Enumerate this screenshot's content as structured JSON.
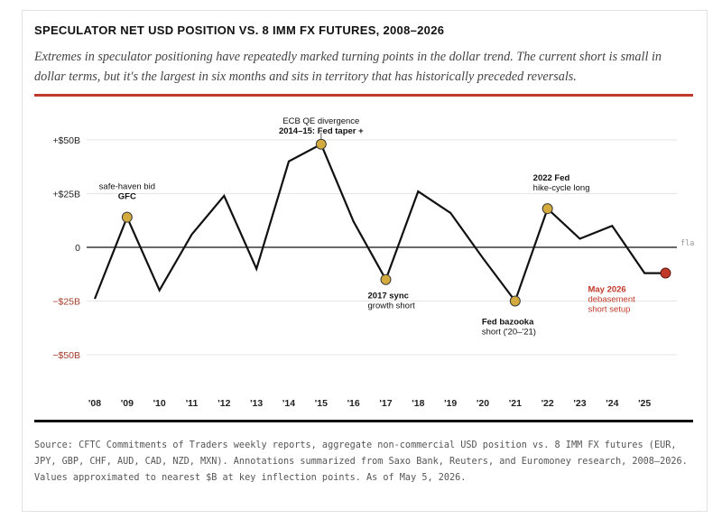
{
  "header": {
    "title": "SPECULATOR NET USD POSITION VS. 8 IMM FX FUTURES, 2008–2026",
    "subtitle": "Extremes in speculator positioning have repeatedly marked turning points in the dollar trend. The current short is small in dollar terms, but it's the largest in six months and sits in territory that has historically preceded reversals."
  },
  "source": "Source: CFTC Commitments of Traders weekly reports, aggregate non-commercial USD position vs. 8 IMM FX futures (EUR, JPY, GBP, CHF, AUD, CAD, NZD, MXN). Annotations summarized from Saxo Bank, Reuters, and Euromoney research, 2008–2026. Values approximated to nearest $B at key inflection points. As of May 5, 2026.",
  "colors": {
    "accent": "#c0392b",
    "line": "#111111",
    "marker": "#d4aa3c",
    "current_marker": "#c0392b",
    "negative_tick": "#a33a2a"
  },
  "chart_data": {
    "type": "line",
    "title": "",
    "xlabel": "",
    "ylabel": "",
    "ylim": [
      -50,
      50
    ],
    "yticks": [
      {
        "value": 50,
        "label": "+$50B",
        "negative": false
      },
      {
        "value": 25,
        "label": "+$25B",
        "negative": false
      },
      {
        "value": 0,
        "label": "0",
        "negative": false
      },
      {
        "value": -25,
        "label": "−$25B",
        "negative": true
      },
      {
        "value": -50,
        "label": "−$50B",
        "negative": true
      }
    ],
    "xlim": [
      2008,
      2026
    ],
    "xticks": [
      {
        "value": 2008,
        "label": "'08"
      },
      {
        "value": 2009,
        "label": "'09"
      },
      {
        "value": 2010,
        "label": "'10"
      },
      {
        "value": 2011,
        "label": "'11"
      },
      {
        "value": 2012,
        "label": "'12"
      },
      {
        "value": 2013,
        "label": "'13"
      },
      {
        "value": 2014,
        "label": "'14"
      },
      {
        "value": 2015,
        "label": "'15"
      },
      {
        "value": 2016,
        "label": "'16"
      },
      {
        "value": 2017,
        "label": "'17"
      },
      {
        "value": 2018,
        "label": "'18"
      },
      {
        "value": 2019,
        "label": "'19"
      },
      {
        "value": 2020,
        "label": "'20"
      },
      {
        "value": 2021,
        "label": "'21"
      },
      {
        "value": 2022,
        "label": "'22"
      },
      {
        "value": 2023,
        "label": "'23"
      },
      {
        "value": 2024,
        "label": "'24"
      },
      {
        "value": 2025,
        "label": "'25"
      }
    ],
    "grid": true,
    "zero_line_label": "fla",
    "series": [
      {
        "points": [
          [
            2008.0,
            -24
          ],
          [
            2009.0,
            14
          ],
          [
            2010.0,
            -20
          ],
          [
            2011.0,
            6
          ],
          [
            2012.0,
            24
          ],
          [
            2013.0,
            -10
          ],
          [
            2014.0,
            40
          ],
          [
            2015.0,
            48
          ],
          [
            2016.0,
            12
          ],
          [
            2017.0,
            -15
          ],
          [
            2018.0,
            26
          ],
          [
            2019.0,
            16
          ],
          [
            2020.0,
            -5
          ],
          [
            2021.0,
            -25
          ],
          [
            2022.0,
            18
          ],
          [
            2023.0,
            4
          ],
          [
            2024.0,
            10
          ],
          [
            2025.0,
            -12
          ],
          [
            2025.65,
            -12
          ]
        ]
      }
    ],
    "annotations": [
      {
        "x": 2009.0,
        "y": 14,
        "lines": [
          "safe-haven bid",
          "GFC"
        ],
        "bold": [
          false,
          true
        ],
        "anchor": "middle",
        "dx": 0,
        "dy": -31,
        "marker": "gold"
      },
      {
        "x": 2015.0,
        "y": 48,
        "lines": [
          "ECB QE divergence",
          "2014–15: Fed taper +"
        ],
        "bold": [
          false,
          true
        ],
        "anchor": "middle",
        "dx": 0,
        "dy": -23,
        "marker": "gold",
        "leader": true
      },
      {
        "x": 2017.0,
        "y": -15,
        "lines": [
          "2017 sync",
          "growth short"
        ],
        "bold": [
          true,
          false
        ],
        "anchor": "start",
        "dx": -20,
        "dy": 21,
        "marker": "gold"
      },
      {
        "x": 2021.0,
        "y": -25,
        "lines": [
          "Fed bazooka",
          "short ('20–'21)"
        ],
        "bold": [
          true,
          false
        ],
        "anchor": "start",
        "dx": -37,
        "dy": 26,
        "marker": "gold"
      },
      {
        "x": 2022.0,
        "y": 18,
        "lines": [
          "2022 Fed",
          "hike-cycle long"
        ],
        "bold": [
          true,
          false
        ],
        "anchor": "start",
        "dx": -16,
        "dy": -31,
        "marker": "gold"
      },
      {
        "x": 2025.65,
        "y": -12,
        "lines": [
          "May 2026",
          "debasement",
          "short setup"
        ],
        "bold": [
          true,
          false,
          false
        ],
        "anchor": "start",
        "dx": -86,
        "dy": 21,
        "marker": "current",
        "accent": true
      }
    ]
  }
}
